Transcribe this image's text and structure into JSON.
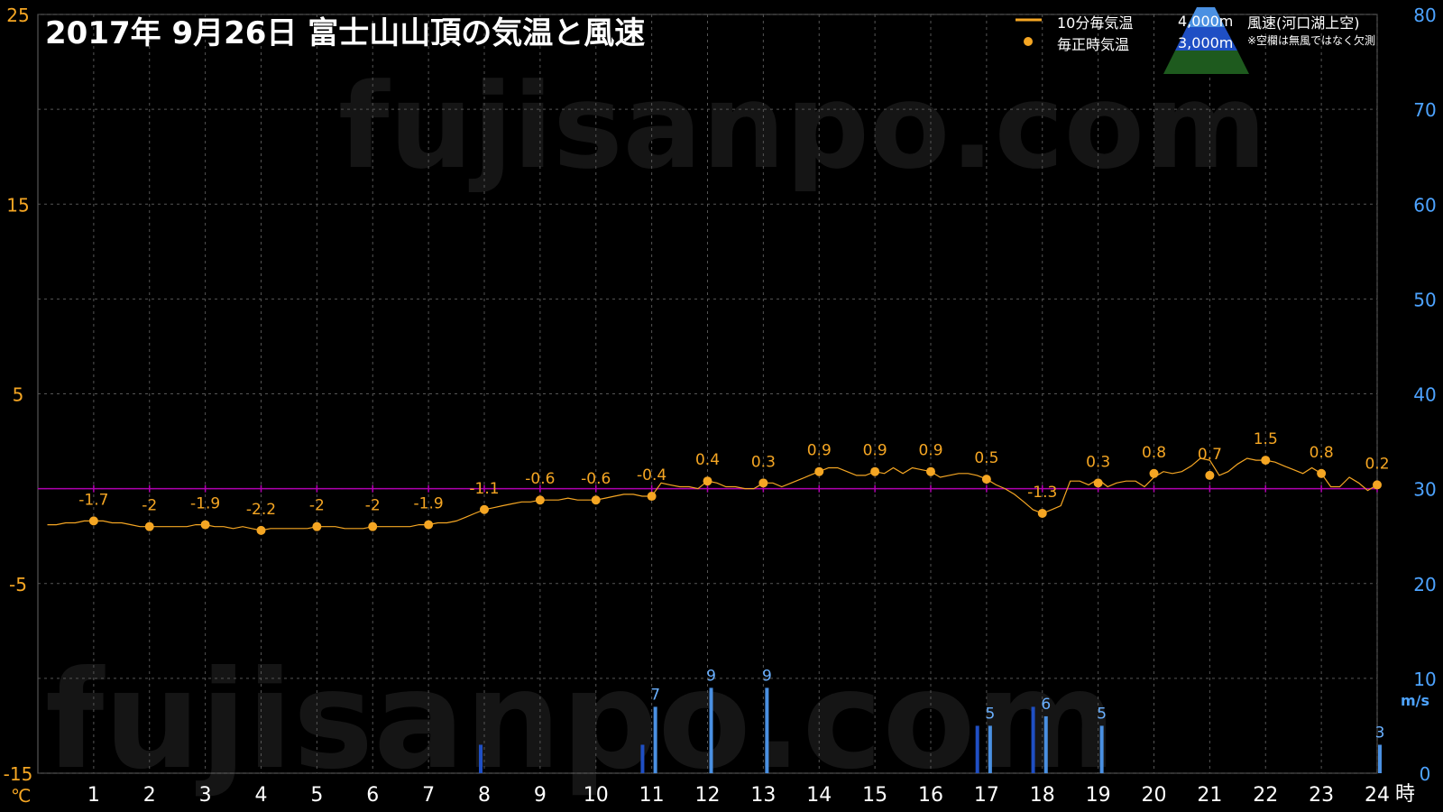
{
  "watermark": "fujisanpo.com",
  "legend": {
    "line_label": "10分毎気温",
    "dot_label": "毎正時気温",
    "alt_4000": "4,000m",
    "alt_3000": "3,000m",
    "wind_title": "風速(河口湖上空)",
    "wind_note": "※空欄は無風ではなく欠測"
  },
  "colors": {
    "background": "#000000",
    "temperature": "#f5a623",
    "wind_4000": "#4a90e2",
    "wind_3000": "#1f4fc4",
    "zero_line": "#b000b0",
    "grid": "#555555"
  },
  "chart_data": {
    "type": "line",
    "title": "2017年  9月26日   富士山山頂の気温と風速",
    "y_left": {
      "unit": "℃",
      "ticks": [
        25,
        15,
        5,
        -5,
        -15
      ],
      "ylim": [
        -15,
        25
      ]
    },
    "y_right": {
      "unit": "m/s",
      "ticks": [
        80,
        70,
        60,
        50,
        40,
        30,
        20,
        10,
        0
      ],
      "ylim": [
        0,
        80
      ]
    },
    "x": {
      "unit": "時",
      "ticks": [
        1,
        2,
        3,
        4,
        5,
        6,
        7,
        8,
        9,
        10,
        11,
        12,
        13,
        14,
        15,
        16,
        17,
        18,
        19,
        20,
        21,
        22,
        23,
        24
      ],
      "xlim": [
        0,
        24
      ]
    },
    "zero_line": 0,
    "grid": true,
    "hourly_temperature": {
      "name": "毎正時気温",
      "x": [
        1,
        2,
        3,
        4,
        5,
        6,
        7,
        8,
        9,
        10,
        11,
        12,
        13,
        14,
        15,
        16,
        17,
        18,
        19,
        20,
        21,
        22,
        23,
        24
      ],
      "values": [
        -1.7,
        -2,
        -1.9,
        -2.2,
        -2,
        -2,
        -1.9,
        -1.1,
        -0.6,
        -0.6,
        -0.4,
        0.4,
        0.3,
        0.9,
        0.9,
        0.9,
        0.5,
        -1.3,
        0.3,
        0.8,
        0.7,
        1.5,
        0.8,
        0.2
      ]
    },
    "ten_minute_temperature": {
      "name": "10分毎気温",
      "x": [
        0.17,
        0.33,
        0.5,
        0.67,
        0.83,
        1,
        1.17,
        1.33,
        1.5,
        1.67,
        1.83,
        2,
        2.17,
        2.33,
        2.5,
        2.67,
        2.83,
        3,
        3.17,
        3.33,
        3.5,
        3.67,
        3.83,
        4,
        4.17,
        4.33,
        4.5,
        4.67,
        4.83,
        5,
        5.17,
        5.33,
        5.5,
        5.67,
        5.83,
        6,
        6.17,
        6.33,
        6.5,
        6.67,
        6.83,
        7,
        7.17,
        7.33,
        7.5,
        7.67,
        7.83,
        8,
        8.17,
        8.33,
        8.5,
        8.67,
        8.83,
        9,
        9.17,
        9.33,
        9.5,
        9.67,
        9.83,
        10,
        10.17,
        10.33,
        10.5,
        10.67,
        10.83,
        11,
        11.17,
        11.33,
        11.5,
        11.67,
        11.83,
        12,
        12.17,
        12.33,
        12.5,
        12.67,
        12.83,
        13,
        13.17,
        13.33,
        13.5,
        13.67,
        13.83,
        14,
        14.17,
        14.33,
        14.5,
        14.67,
        14.83,
        15,
        15.17,
        15.33,
        15.5,
        15.67,
        15.83,
        16,
        16.17,
        16.33,
        16.5,
        16.67,
        16.83,
        17,
        17.17,
        17.33,
        17.5,
        17.67,
        17.83,
        18,
        18.17,
        18.33,
        18.5,
        18.67,
        18.83,
        19,
        19.17,
        19.33,
        19.5,
        19.67,
        19.83,
        20,
        20.17,
        20.33,
        20.5,
        20.67,
        20.83,
        21,
        21.17,
        21.33,
        21.5,
        21.67,
        21.83,
        22,
        22.17,
        22.33,
        22.5,
        22.67,
        22.83,
        23,
        23.17,
        23.33,
        23.5,
        23.67,
        23.83,
        24
      ],
      "values": [
        -1.9,
        -1.9,
        -1.8,
        -1.8,
        -1.7,
        -1.7,
        -1.7,
        -1.8,
        -1.8,
        -1.9,
        -2,
        -2,
        -2,
        -2,
        -2,
        -2,
        -1.9,
        -1.9,
        -2,
        -2,
        -2.1,
        -2,
        -2.1,
        -2.2,
        -2.1,
        -2.1,
        -2.1,
        -2.1,
        -2.1,
        -2,
        -2,
        -2,
        -2.1,
        -2.1,
        -2.1,
        -2,
        -2,
        -2,
        -2,
        -2,
        -1.9,
        -1.9,
        -1.8,
        -1.8,
        -1.7,
        -1.5,
        -1.3,
        -1.1,
        -1,
        -0.9,
        -0.8,
        -0.7,
        -0.7,
        -0.6,
        -0.6,
        -0.6,
        -0.5,
        -0.6,
        -0.6,
        -0.6,
        -0.5,
        -0.4,
        -0.3,
        -0.3,
        -0.4,
        -0.4,
        0.3,
        0.2,
        0.1,
        0.1,
        0,
        0.4,
        0.3,
        0.1,
        0.1,
        0,
        0,
        0.3,
        0.3,
        0.1,
        0.3,
        0.5,
        0.7,
        0.9,
        1.1,
        1.1,
        0.9,
        0.7,
        0.7,
        0.9,
        0.8,
        1.1,
        0.8,
        1.1,
        1,
        0.9,
        0.6,
        0.7,
        0.8,
        0.8,
        0.7,
        0.5,
        0.2,
        0,
        -0.3,
        -0.7,
        -1.1,
        -1.3,
        -1.1,
        -0.9,
        0.4,
        0.4,
        0.2,
        0.5,
        0.1,
        0.3,
        0.4,
        0.4,
        0.1,
        0.6,
        0.9,
        0.8,
        0.9,
        1.2,
        1.6,
        1.5,
        0.7,
        0.9,
        1.3,
        1.6,
        1.5,
        1.5,
        1.4,
        1.2,
        1,
        0.8,
        1.1,
        0.8,
        0.1,
        0.1,
        0.6,
        0.3,
        -0.1,
        0.2
      ]
    },
    "wind_4000m": {
      "name": "4,000m",
      "x": [
        11,
        12,
        13,
        17,
        18,
        19,
        24
      ],
      "values": [
        7,
        9,
        9,
        5,
        6,
        5,
        3
      ],
      "labels": [
        "7",
        "9",
        "9",
        "5",
        "6",
        "5",
        "3"
      ]
    },
    "wind_3000m": {
      "name": "3,000m",
      "x": [
        8,
        10.9,
        16.9,
        17.9
      ],
      "values": [
        3,
        3,
        5,
        7
      ]
    }
  }
}
